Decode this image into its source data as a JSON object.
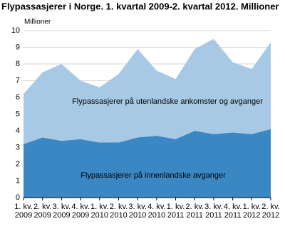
{
  "chart_data": {
    "type": "stacked_area",
    "title": "Flypassasjerer i Norge. 1. kvartal 2009-2. kvartal 2012. Millioner",
    "y_label": "Millioner",
    "categories": [
      "1. kv. 2009",
      "2. kv. 2009",
      "3. kv. 2009",
      "4. kv. 2009",
      "1. kv. 2010",
      "2. kv. 2010",
      "3. kv. 2010",
      "4. kv. 2010",
      "1. kv. 2011",
      "2. kv. 2011",
      "3. kv. 2011",
      "4. kv. 2011",
      "1. kv. 2012",
      "2. kv. 2012"
    ],
    "series": [
      {
        "name": "Flypassasjerer på innenlandske avganger",
        "color": "#3a87c4",
        "values": [
          3.2,
          3.6,
          3.4,
          3.5,
          3.3,
          3.3,
          3.6,
          3.7,
          3.5,
          4.0,
          3.8,
          3.9,
          3.8,
          4.1
        ]
      },
      {
        "name": "Flypassasjerer på utenlandske ankomster og avganger",
        "color": "#a7c9e5",
        "values": [
          3.0,
          3.9,
          4.6,
          3.5,
          3.3,
          4.1,
          5.3,
          3.9,
          3.6,
          4.9,
          5.7,
          4.2,
          3.9,
          5.2
        ]
      }
    ],
    "ylim": [
      0,
      10
    ],
    "yticks": [
      0,
      1,
      2,
      3,
      4,
      5,
      6,
      7,
      8,
      9,
      10
    ],
    "grid": true
  }
}
